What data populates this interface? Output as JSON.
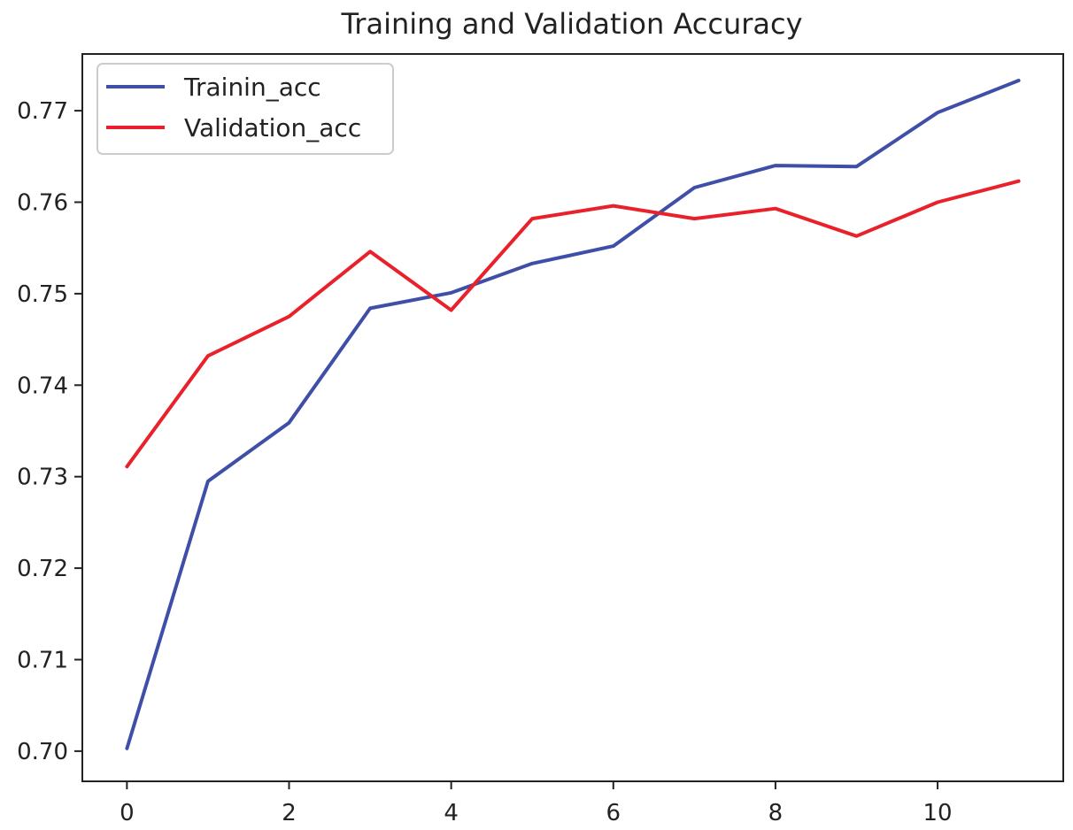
{
  "chart_data": {
    "type": "line",
    "title": "Training and Validation Accuracy",
    "xlabel": "",
    "ylabel": "",
    "x": [
      0,
      1,
      2,
      3,
      4,
      5,
      6,
      7,
      8,
      9,
      10,
      11
    ],
    "xlim": [
      -0.55,
      11.55
    ],
    "ylim": [
      0.6967,
      0.7762
    ],
    "xticks": [
      0,
      2,
      4,
      6,
      8,
      10
    ],
    "xtick_labels": [
      "0",
      "2",
      "4",
      "6",
      "8",
      "10"
    ],
    "yticks": [
      0.7,
      0.71,
      0.72,
      0.73,
      0.74,
      0.75,
      0.76,
      0.77
    ],
    "ytick_labels": [
      "0.70",
      "0.71",
      "0.72",
      "0.73",
      "0.74",
      "0.75",
      "0.76",
      "0.77"
    ],
    "grid": false,
    "legend_position": "top-left",
    "series": [
      {
        "name": "Trainin_acc",
        "color": "#3f4fa8",
        "values": [
          0.7003,
          0.7295,
          0.7359,
          0.7484,
          0.7501,
          0.7533,
          0.7552,
          0.7616,
          0.764,
          0.7639,
          0.7698,
          0.7733
        ]
      },
      {
        "name": "Validation_acc",
        "color": "#e8212b",
        "values": [
          0.7311,
          0.7432,
          0.7475,
          0.7546,
          0.7482,
          0.7582,
          0.7596,
          0.7582,
          0.7593,
          0.7563,
          0.76,
          0.7623
        ]
      }
    ]
  }
}
